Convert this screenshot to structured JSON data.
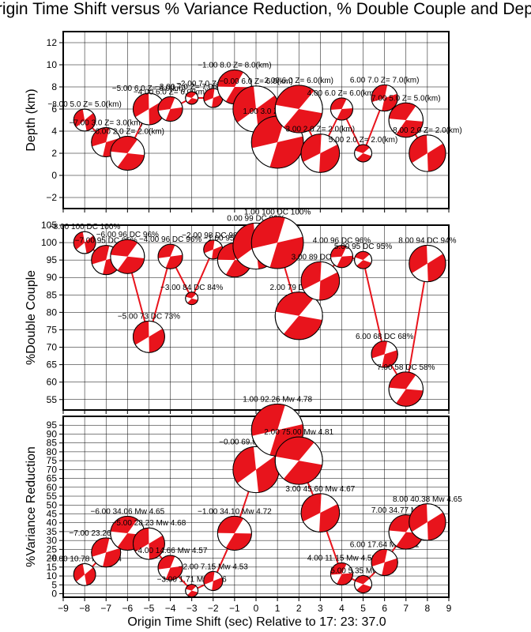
{
  "title": "Origin Time Shift versus % Variance Reduction, % Double Couple and Depth",
  "xlabel": "Origin Time Shift (sec) Relative to 17: 23: 37.0",
  "colors": {
    "series": "#e8141c",
    "grid": "#000000",
    "background": "#ffffff"
  },
  "x_ticks": [
    "-9",
    "-8",
    "-7",
    "-6",
    "-5",
    "-4",
    "-3",
    "-2",
    "-1",
    "0",
    "1",
    "2",
    "3",
    "4",
    "5",
    "6",
    "7",
    "8",
    "9"
  ],
  "chart_data": [
    {
      "type": "line",
      "name": "depth",
      "ylabel": "Depth (km)",
      "xlim": [
        -9,
        9
      ],
      "ylim": [
        -3,
        13
      ],
      "y_ticks": [
        "-2",
        "0",
        "2",
        "4",
        "6",
        "8",
        "10",
        "12"
      ],
      "y_tick_values": [
        -2,
        0,
        2,
        4,
        6,
        8,
        10,
        12
      ],
      "x": [
        -8,
        -7,
        -6,
        -5,
        -4,
        -3,
        -2,
        -1,
        0,
        1,
        2,
        3,
        4,
        5,
        6,
        7,
        8
      ],
      "values": [
        5,
        3,
        2,
        6,
        6,
        7,
        7,
        8,
        6,
        3,
        6,
        2,
        6,
        2,
        7,
        5,
        2
      ],
      "marker_sizes": [
        10.78,
        23.26,
        34.06,
        28.23,
        14.66,
        1.71,
        7.15,
        34.1,
        69.93,
        92.26,
        75,
        45.6,
        11.15,
        5.35,
        17.64,
        34.77,
        40.38
      ],
      "labels": [
        "−8.00 5.0 Z= 5.0(km)",
        "−7.00 3.0 Z= 3.0(km)",
        "−6.00 2.0 Z= 2.0(km)",
        "−5.00 6.0 Z= 6.0(km)",
        "−4.00 6.0 Z= 6.0(km)",
        "−3.00 7.0 Z= 7.0(km)",
        "−2.00 7.0 Z= 7.0(km)",
        "−1.00 8.0 Z= 8.0(km)",
        "−0.00 6.0 Z= 6.0(km)",
        "1.00 3.0 Z= 3.0(km)",
        "2.00 6.0 Z= 6.0(km)",
        "3.00 2.0 Z= 2.0(km)",
        "4.00 6.0 Z= 6.0(km)",
        "5.00 2.0 Z= 2.0(km)",
        "6.00 7.0 Z= 7.0(km)",
        "7.00 5.0 Z= 5.0(km)",
        "8.00 2.0 Z= 2.0(km)"
      ]
    },
    {
      "type": "line",
      "name": "double-couple",
      "ylabel": "%Double Couple",
      "xlim": [
        -9,
        9
      ],
      "ylim": [
        52,
        105
      ],
      "y_ticks": [
        "55",
        "60",
        "65",
        "70",
        "75",
        "80",
        "85",
        "90",
        "95",
        "100",
        "105"
      ],
      "y_tick_values": [
        55,
        60,
        65,
        70,
        75,
        80,
        85,
        90,
        95,
        100,
        105
      ],
      "x": [
        -8,
        -7,
        -6,
        -5,
        -4,
        -3,
        -2,
        -1,
        0,
        1,
        2,
        3,
        4,
        5,
        6,
        7,
        8
      ],
      "values": [
        100,
        95,
        96,
        73,
        96,
        84,
        98,
        95,
        99,
        100,
        79,
        89,
        96,
        95,
        68,
        58,
        94
      ],
      "marker_sizes": [
        10.78,
        23.26,
        34.06,
        28.23,
        14.66,
        1.71,
        7.15,
        34.1,
        69.93,
        92.26,
        75,
        45.6,
        11.15,
        5.35,
        17.64,
        34.77,
        40.38
      ],
      "labels": [
        "−8.00 100 DC 100%",
        "−7.00 95 DC 95%",
        "−6.00 96 DC 96%",
        "−5.00 73 DC 73%",
        "−4.00 96 DC 96%",
        "−3.00 84 DC 84%",
        "−2.00 98 DC 98%",
        "−1.00 95 DC 95%",
        "0.00 99 DC 99%",
        "1.00 100 DC 100%",
        "2.00 79 DC 79%",
        "3.00 89 DC 89%",
        "4.00 96 DC 96%",
        "5.00 95 DC 95%",
        "6.00 68 DC 68%",
        "7.00 58 DC 58%",
        "8.00 94 DC 94%"
      ]
    },
    {
      "type": "line",
      "name": "variance-reduction",
      "ylabel": "%Variance Reduction",
      "xlim": [
        -9,
        9
      ],
      "ylim": [
        -2,
        100
      ],
      "y_ticks": [
        "0",
        "5",
        "10",
        "15",
        "20",
        "25",
        "30",
        "35",
        "40",
        "45",
        "50",
        "55",
        "60",
        "65",
        "70",
        "75",
        "80",
        "85",
        "90",
        "95"
      ],
      "y_tick_values": [
        0,
        5,
        10,
        15,
        20,
        25,
        30,
        35,
        40,
        45,
        50,
        55,
        60,
        65,
        70,
        75,
        80,
        85,
        90,
        95
      ],
      "x": [
        -8,
        -7,
        -6,
        -5,
        -4,
        -3,
        -2,
        -1,
        0,
        1,
        2,
        3,
        4,
        5,
        6,
        7,
        8
      ],
      "values": [
        10.78,
        23.26,
        34.06,
        28.23,
        14.66,
        1.71,
        7.15,
        34.1,
        69.93,
        92.26,
        75,
        45.6,
        11.15,
        5.35,
        17.64,
        34.77,
        40.38
      ],
      "marker_sizes": [
        10.78,
        23.26,
        34.06,
        28.23,
        14.66,
        1.71,
        7.15,
        34.1,
        69.93,
        92.26,
        75,
        45.6,
        11.15,
        5.35,
        17.64,
        34.77,
        40.38
      ],
      "labels": [
        "−8.00 10.78 Mw 4.54",
        "−7.00 23.26 Mw 4.60",
        "−6.00 34.06 Mw 4.65",
        "−5.00 28.23 Mw 4.68",
        "−4.00 14.66 Mw 4.57",
        "−3.00 1.71 Mw 4.46",
        "−2.00 7.15 Mw 4.53",
        "−1.00 34.10 Mw 4.72",
        "−0.00 69.93 Mw 4.80",
        "1.00 92.26 Mw 4.78",
        "2.00 75.00 Mw 4.81",
        "3.00 45.60 Mw 4.67",
        "4.00 11.15 Mw 4.59",
        "5.00 5.35 Mw 4.67",
        "6.00 17.64 Mw 4.71",
        "7.00 34.77 Mw 4.75",
        "8.00 40.38 Mw 4.65"
      ]
    }
  ]
}
